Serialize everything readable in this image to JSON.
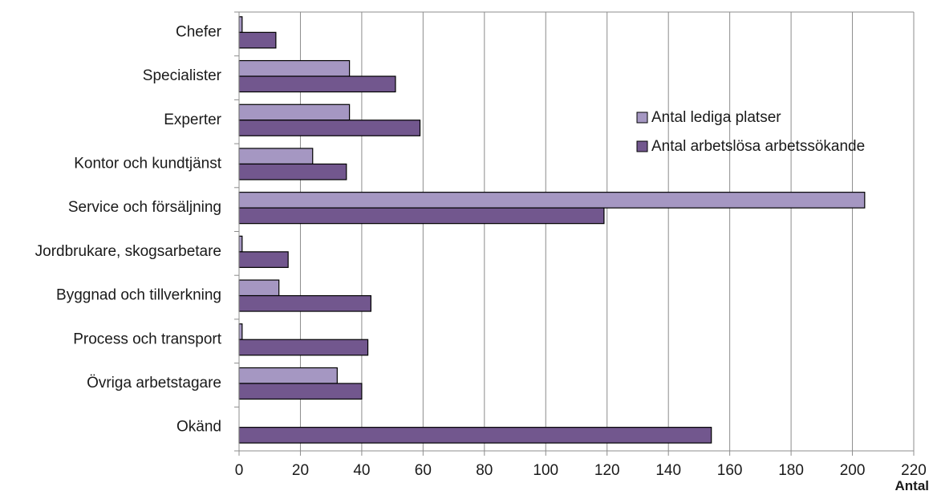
{
  "chart_data": {
    "type": "bar",
    "orientation": "horizontal",
    "title": "",
    "xlabel": "Antal",
    "ylabel": "",
    "xlim": [
      0,
      220
    ],
    "xticks": [
      0,
      20,
      40,
      60,
      80,
      100,
      120,
      140,
      160,
      180,
      200,
      220
    ],
    "grid": true,
    "legend_position": "right",
    "categories": [
      "Chefer",
      "Specialister",
      "Experter",
      "Kontor och kundtjänst",
      "Service och försäljning",
      "Jordbrukare, skogsarbetare",
      "Byggnad och tillverkning",
      "Process och transport",
      "Övriga arbetstagare",
      "Okänd"
    ],
    "series": [
      {
        "name": "Antal lediga platser",
        "color": "#a597c2",
        "values": [
          1,
          36,
          36,
          24,
          204,
          1,
          13,
          1,
          32,
          0
        ]
      },
      {
        "name": "Antal arbetslösa arbetssökande",
        "color": "#72578e",
        "values": [
          12,
          51,
          59,
          35,
          119,
          16,
          43,
          42,
          40,
          154
        ]
      }
    ]
  }
}
